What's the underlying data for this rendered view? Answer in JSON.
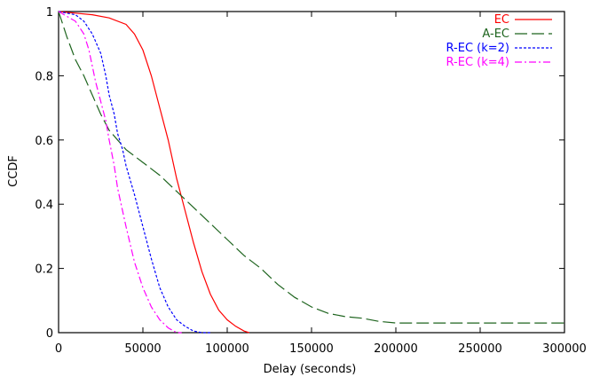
{
  "chart_data": {
    "type": "line",
    "title": "",
    "xlabel": "Delay (seconds)",
    "ylabel": "CCDF",
    "xlim": [
      0,
      300000
    ],
    "ylim": [
      0,
      1
    ],
    "x_ticks": [
      0,
      50000,
      100000,
      150000,
      200000,
      250000,
      300000
    ],
    "x_tick_labels": [
      "0",
      "50000",
      "100000",
      "150000",
      "200000",
      "250000",
      "300000"
    ],
    "y_ticks": [
      0,
      0.2,
      0.4,
      0.6,
      0.8,
      1
    ],
    "y_tick_labels": [
      "0",
      "0.2",
      "0.4",
      "0.6",
      "0.8",
      "1"
    ],
    "grid": false,
    "legend_position": "top-right",
    "series": [
      {
        "name": "EC",
        "color": "#ff0000",
        "dash": "solid",
        "x": [
          0,
          10000,
          20000,
          30000,
          40000,
          45000,
          50000,
          55000,
          60000,
          65000,
          70000,
          75000,
          80000,
          85000,
          90000,
          95000,
          100000,
          105000,
          110000,
          113000
        ],
        "y": [
          1.0,
          0.995,
          0.99,
          0.98,
          0.96,
          0.93,
          0.88,
          0.8,
          0.7,
          0.6,
          0.48,
          0.38,
          0.28,
          0.19,
          0.12,
          0.07,
          0.04,
          0.02,
          0.005,
          0.0
        ]
      },
      {
        "name": "A-EC",
        "color": "#1e641e",
        "dash": "long-dash",
        "x": [
          0,
          5000,
          10000,
          15000,
          20000,
          25000,
          30000,
          35000,
          40000,
          50000,
          60000,
          70000,
          80000,
          90000,
          100000,
          110000,
          120000,
          130000,
          140000,
          150000,
          160000,
          170000,
          180000,
          190000,
          200000,
          250000,
          300000
        ],
        "y": [
          1.0,
          0.92,
          0.85,
          0.8,
          0.74,
          0.68,
          0.63,
          0.6,
          0.57,
          0.53,
          0.49,
          0.44,
          0.39,
          0.34,
          0.29,
          0.24,
          0.2,
          0.15,
          0.11,
          0.08,
          0.06,
          0.05,
          0.045,
          0.035,
          0.03,
          0.03,
          0.03
        ]
      },
      {
        "name": "R-EC (k=2)",
        "color": "#0000ff",
        "dash": "short-dash",
        "x": [
          0,
          10000,
          15000,
          20000,
          25000,
          28000,
          30000,
          33000,
          35000,
          38000,
          40000,
          45000,
          50000,
          55000,
          60000,
          65000,
          70000,
          75000,
          80000,
          85000,
          90000
        ],
        "y": [
          1.0,
          0.99,
          0.97,
          0.93,
          0.87,
          0.8,
          0.74,
          0.68,
          0.62,
          0.57,
          0.52,
          0.43,
          0.33,
          0.23,
          0.14,
          0.08,
          0.04,
          0.02,
          0.005,
          0.0,
          0.0
        ]
      },
      {
        "name": "R-EC (k=4)",
        "color": "#ff00ff",
        "dash": "dash-dot",
        "x": [
          0,
          10000,
          15000,
          18000,
          20000,
          22000,
          25000,
          28000,
          30000,
          33000,
          35000,
          40000,
          45000,
          50000,
          55000,
          60000,
          65000,
          70000,
          73000
        ],
        "y": [
          1.0,
          0.97,
          0.93,
          0.88,
          0.83,
          0.78,
          0.72,
          0.66,
          0.6,
          0.52,
          0.45,
          0.33,
          0.22,
          0.14,
          0.08,
          0.04,
          0.015,
          0.0,
          0.0
        ]
      }
    ]
  }
}
